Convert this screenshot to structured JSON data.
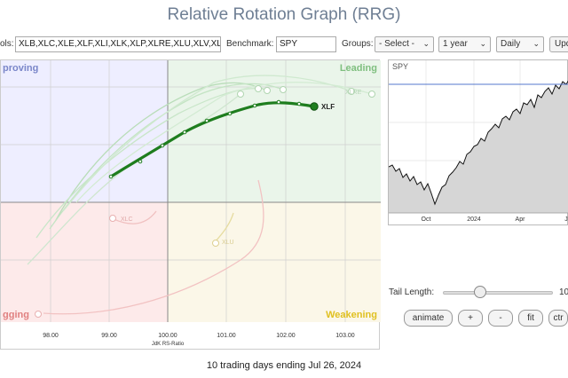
{
  "title": "Relative Rotation Graph (RRG)",
  "controls": {
    "symbols_label": "ols:",
    "symbols_value": "XLB,XLC,XLE,XLF,XLI,XLK,XLP,XLRE,XLU,XLV,XL",
    "benchmark_label": "Benchmark:",
    "benchmark_value": "SPY",
    "groups_label": "Groups:",
    "groups_value": "- Select -",
    "period_value": "1 year",
    "frequency_value": "Daily",
    "update_label": "Upd"
  },
  "quadrants": {
    "improving": "proving",
    "leading": "Leading",
    "lagging": "gging",
    "weakening": "Weakening",
    "colors": {
      "improving": "#eeeeff",
      "leading": "#eaf5ea",
      "lagging": "#fdeaea",
      "weakening": "#fbf7e8"
    }
  },
  "rrg": {
    "x_ticks": [
      "98.00",
      "99.00",
      "100.00",
      "101.00",
      "102.00",
      "103.00"
    ],
    "x_label": "JdK RS-Ratio",
    "highlight": {
      "symbol": "XLF",
      "color": "#1e7d1e"
    },
    "faded_labels": [
      "XLRE",
      "XLC",
      "XLU"
    ]
  },
  "spy_chart": {
    "symbol": "SPY",
    "x_ticks": [
      "Oct",
      "2024",
      "Apr",
      "J"
    ]
  },
  "tail": {
    "label": "Tail Length:",
    "value": "10",
    "fraction": 0.3
  },
  "buttons": {
    "animate": "animate",
    "plus": "+",
    "minus": "-",
    "fit": "fit",
    "ctr": "ctr"
  },
  "footer": "10 trading days ending Jul 26, 2024"
}
